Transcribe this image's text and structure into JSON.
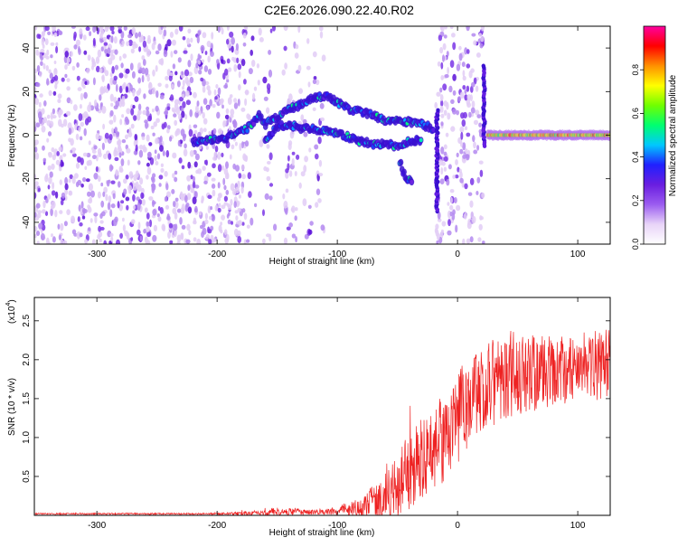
{
  "title": "C2E6.2026.090.22.40.R02",
  "colors": {
    "snr_line": "#ee2222",
    "colormap": [
      "#ffffff",
      "#e8d4f8",
      "#9b5cf0",
      "#6a1ee0",
      "#2020ff",
      "#00c8ff",
      "#00ff70",
      "#70ff00",
      "#ffff00",
      "#ff9000",
      "#ff0000",
      "#ff00a0"
    ]
  },
  "chart_data": [
    {
      "type": "heatmap",
      "name": "spectrogram",
      "xlabel": "Height of straight line (km)",
      "ylabel": "Frequency (Hz)",
      "xlim": [
        -352,
        127
      ],
      "ylim": [
        -50,
        50
      ],
      "xticks": [
        -300,
        -200,
        -100,
        0,
        100
      ],
      "xtick_labels": [
        "-300",
        "-200",
        "-100",
        "0",
        "100"
      ],
      "yticks": [
        -40,
        -20,
        0,
        20,
        40
      ],
      "ytick_labels": [
        "-40",
        "-20",
        "0",
        "20",
        "40"
      ],
      "colorbar": {
        "label": "Normalized spectral amplitude",
        "range": [
          0,
          1
        ],
        "ticks": [
          0.0,
          0.2,
          0.4,
          0.6,
          0.8
        ],
        "tick_labels": [
          "0.0",
          "0.2",
          "0.4",
          "0.6",
          "0.8"
        ]
      },
      "noise_regions": [
        {
          "x0": -352,
          "x1": -175,
          "density": 0.75
        },
        {
          "x0": -175,
          "x1": -160,
          "density": 0.18
        },
        {
          "x0": -160,
          "x1": -155,
          "density": 0.45
        },
        {
          "x0": -155,
          "x1": -145,
          "density": 0.06
        },
        {
          "x0": -145,
          "x1": -130,
          "density": 0.4
        },
        {
          "x0": -130,
          "x1": -110,
          "density": 0.25
        },
        {
          "x0": -18,
          "x1": 22,
          "density": 0.6
        }
      ],
      "tracks": [
        {
          "name": "upper trace",
          "points": [
            [
              -220,
              -3
            ],
            [
              -195,
              -2
            ],
            [
              -175,
              3
            ],
            [
              -165,
              9
            ],
            [
              -160,
              5
            ],
            [
              -150,
              8
            ],
            [
              -140,
              12
            ],
            [
              -130,
              14
            ],
            [
              -120,
              17
            ],
            [
              -110,
              18
            ],
            [
              -100,
              15
            ],
            [
              -90,
              12
            ],
            [
              -80,
              11
            ],
            [
              -70,
              9
            ],
            [
              -60,
              7
            ],
            [
              -50,
              7
            ],
            [
              -40,
              6
            ],
            [
              -30,
              5
            ],
            [
              -20,
              3
            ]
          ]
        },
        {
          "name": "lower trace",
          "points": [
            [
              -160,
              -2
            ],
            [
              -150,
              4
            ],
            [
              -140,
              5
            ],
            [
              -130,
              3
            ],
            [
              -120,
              3
            ],
            [
              -110,
              2
            ],
            [
              -100,
              1
            ],
            [
              -90,
              -1
            ],
            [
              -80,
              -3
            ],
            [
              -70,
              -4
            ],
            [
              -60,
              -4
            ],
            [
              -50,
              -5
            ],
            [
              -40,
              -3
            ],
            [
              -30,
              -2
            ]
          ]
        },
        {
          "name": "descending branch",
          "points": [
            [
              -48,
              -12
            ],
            [
              -45,
              -17
            ],
            [
              -42,
              -20
            ],
            [
              -38,
              -22
            ]
          ]
        },
        {
          "name": "steady tone",
          "points": [
            [
              25,
              0
            ],
            [
              50,
              0
            ],
            [
              75,
              0
            ],
            [
              100,
              0
            ],
            [
              127,
              0
            ]
          ]
        }
      ],
      "spikes": [
        {
          "x": -17,
          "y0": -35,
          "y1": 12
        },
        {
          "x": 22,
          "y0": -5,
          "y1": 32
        }
      ]
    },
    {
      "type": "line",
      "name": "snr",
      "xlabel": "Height of straight line (km)",
      "ylabel": "SNR (10 * v/v)",
      "multiplier": "(x10",
      "multiplier_exp": "4",
      "multiplier_close": ")",
      "xlim": [
        -352,
        127
      ],
      "ylim": [
        0,
        2.8
      ],
      "xticks": [
        -300,
        -200,
        -100,
        0,
        100
      ],
      "xtick_labels": [
        "-300",
        "-200",
        "-100",
        "0",
        "100"
      ],
      "yticks": [
        0.5,
        1.0,
        1.5,
        2.0,
        2.5
      ],
      "ytick_labels": [
        "0.5",
        "1.0",
        "1.5",
        "2.0",
        "2.5"
      ],
      "envelope": {
        "x": [
          -352,
          -200,
          -160,
          -150,
          -120,
          -100,
          -80,
          -60,
          -50,
          -40,
          -30,
          -20,
          -10,
          0,
          10,
          20,
          30,
          40,
          60,
          80,
          100,
          127
        ],
        "baseline": [
          0.02,
          0.02,
          0.03,
          0.05,
          0.04,
          0.06,
          0.12,
          0.25,
          0.4,
          0.55,
          0.7,
          0.85,
          1.05,
          1.25,
          1.45,
          1.6,
          1.75,
          1.8,
          1.82,
          1.85,
          1.9,
          1.95
        ],
        "spread": [
          0.01,
          0.01,
          0.04,
          0.06,
          0.03,
          0.05,
          0.15,
          0.3,
          0.45,
          0.5,
          0.55,
          0.55,
          0.6,
          0.6,
          0.6,
          0.55,
          0.6,
          0.6,
          0.5,
          0.45,
          0.45,
          0.45
        ]
      },
      "series": [
        {
          "name": "SNR"
        }
      ]
    }
  ]
}
